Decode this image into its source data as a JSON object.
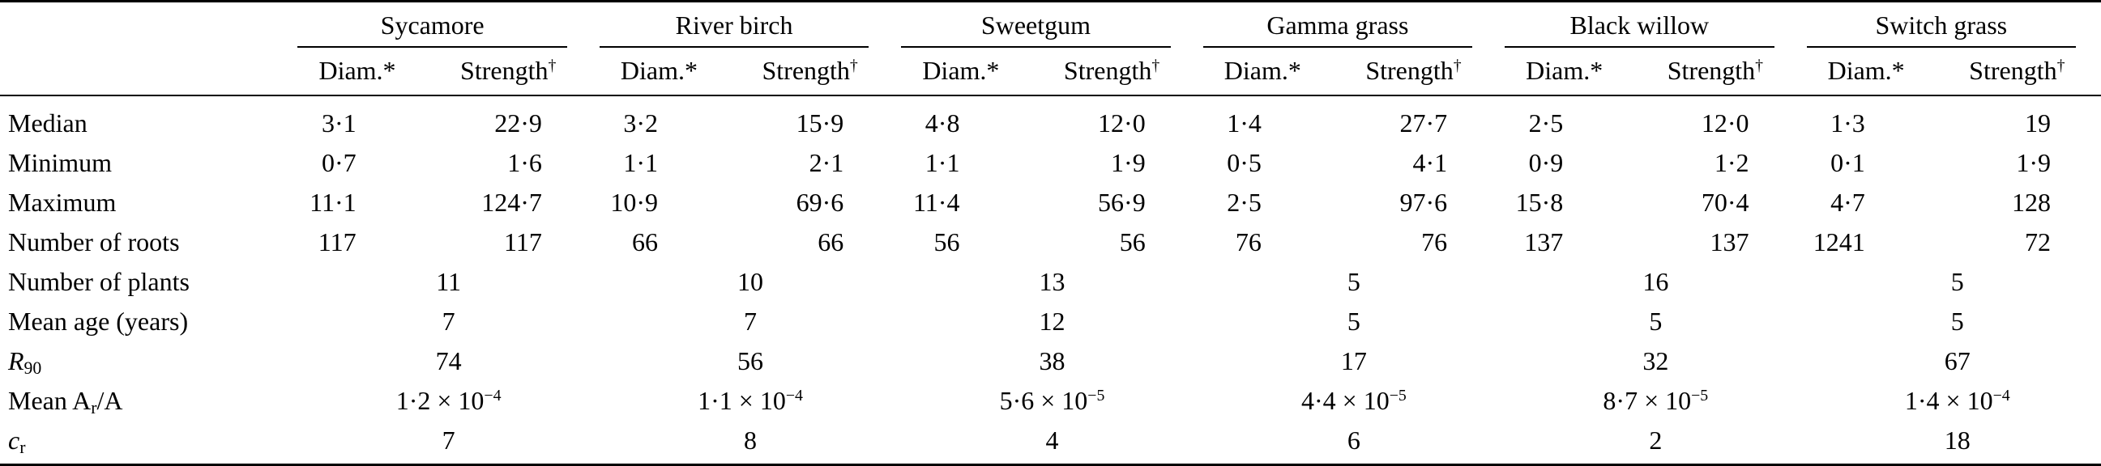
{
  "table": {
    "sci_infix": " × 10",
    "subheaders": {
      "diam": "Diam.",
      "diam_mark": "*",
      "strength": "Strength",
      "strength_mark": "†"
    },
    "species": [
      {
        "name": "Sycamore"
      },
      {
        "name": "River birch"
      },
      {
        "name": "Sweetgum"
      },
      {
        "name": "Gamma grass"
      },
      {
        "name": "Black willow"
      },
      {
        "name": "Switch grass"
      }
    ],
    "rows": [
      {
        "label": [
          {
            "text": "Median"
          }
        ],
        "cells": [
          [
            "3·1",
            "22·9"
          ],
          [
            "3·2",
            "15·9"
          ],
          [
            "4·8",
            "12·0"
          ],
          [
            "1·4",
            "27·7"
          ],
          [
            "2·5",
            "12·0"
          ],
          [
            "1·3",
            "19"
          ]
        ]
      },
      {
        "label": [
          {
            "text": "Minimum"
          }
        ],
        "cells": [
          [
            "0·7",
            "1·6"
          ],
          [
            "1·1",
            "2·1"
          ],
          [
            "1·1",
            "1·9"
          ],
          [
            "0·5",
            "4·1"
          ],
          [
            "0·9",
            "1·2"
          ],
          [
            "0·1",
            "1·9"
          ]
        ]
      },
      {
        "label": [
          {
            "text": "Maximum"
          }
        ],
        "cells": [
          [
            "11·1",
            "124·7"
          ],
          [
            "10·9",
            "69·6"
          ],
          [
            "11·4",
            "56·9"
          ],
          [
            "2·5",
            "97·6"
          ],
          [
            "15·8",
            "70·4"
          ],
          [
            "4·7",
            "128"
          ]
        ]
      },
      {
        "label": [
          {
            "text": "Number of roots"
          }
        ],
        "cells": [
          [
            "117",
            "117"
          ],
          [
            "66",
            "66"
          ],
          [
            "56",
            "56"
          ],
          [
            "76",
            "76"
          ],
          [
            "137",
            "137"
          ],
          [
            "1241",
            "72"
          ]
        ]
      },
      {
        "label": [
          {
            "text": "Number of plants"
          }
        ],
        "span": true,
        "cells": [
          "11",
          "10",
          "13",
          "5",
          "16",
          "5"
        ]
      },
      {
        "label": [
          {
            "text": "Mean age (years)"
          }
        ],
        "span": true,
        "cells": [
          "7",
          "7",
          "12",
          "5",
          "5",
          "5"
        ]
      },
      {
        "label": [
          {
            "italic": "R"
          },
          {
            "sub": "90"
          }
        ],
        "span": true,
        "cells": [
          "74",
          "56",
          "38",
          "17",
          "32",
          "67"
        ]
      },
      {
        "label": [
          {
            "text": "Mean A"
          },
          {
            "sub": "r"
          },
          {
            "text": "/A"
          }
        ],
        "span": true,
        "cells": [
          {
            "coeff": "1·2",
            "exp": "−4"
          },
          {
            "coeff": "1·1",
            "exp": "−4"
          },
          {
            "coeff": "5·6",
            "exp": "−5"
          },
          {
            "coeff": "4·4",
            "exp": "−5"
          },
          {
            "coeff": "8·7",
            "exp": "−5"
          },
          {
            "coeff": "1·4",
            "exp": "−4"
          }
        ]
      },
      {
        "label": [
          {
            "italic": "c"
          },
          {
            "sub": "r"
          }
        ],
        "span": true,
        "cells": [
          "7",
          "8",
          "4",
          "6",
          "2",
          "18"
        ]
      }
    ]
  }
}
